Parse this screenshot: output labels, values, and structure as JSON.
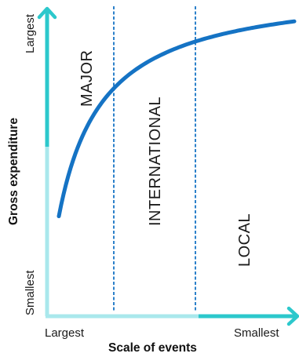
{
  "y_axis": {
    "title": "Gross expenditure",
    "top_label": "Largest",
    "bottom_label": "Smallest"
  },
  "x_axis": {
    "title": "Scale of events",
    "left_label": "Largest",
    "right_label": "Smallest"
  },
  "zones": {
    "major": "MAJOR",
    "international": "INTERNATIONAL",
    "local": "LOCAL"
  },
  "colors": {
    "axis_dark": "#2cc8cc",
    "axis_light": "#a9e8ec",
    "curve": "#1573c4",
    "divider": "#1573c4",
    "text": "#1a1a1a"
  }
}
